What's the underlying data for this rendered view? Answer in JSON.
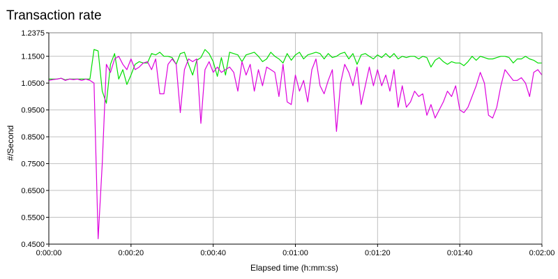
{
  "chart_data": {
    "type": "line",
    "title": "Transaction rate",
    "xlabel": "Elapsed time (h:mm:ss)",
    "ylabel": "#/Second",
    "xlim": [
      0,
      120
    ],
    "ylim": [
      0.45,
      1.2375
    ],
    "grid": true,
    "xticks": [
      0,
      20,
      40,
      60,
      80,
      100,
      120
    ],
    "xtick_labels": [
      "0:00:00",
      "0:00:20",
      "0:00:40",
      "0:01:00",
      "0:01:20",
      "0:01:40",
      "0:02:00"
    ],
    "yticks": [
      0.45,
      0.55,
      0.65,
      0.75,
      0.85,
      0.95,
      1.05,
      1.15,
      1.2375
    ],
    "ytick_labels": [
      "0.4500",
      "0.5500",
      "0.6500",
      "0.7500",
      "0.8500",
      "0.9500",
      "1.0500",
      "1.1500",
      "1.2375"
    ],
    "series": [
      {
        "color": "#00dd00",
        "x": [
          0,
          1,
          2,
          3,
          4,
          5,
          6,
          7,
          8,
          9,
          10,
          11,
          12,
          13,
          14,
          15,
          16,
          17,
          18,
          19,
          20,
          21,
          22,
          23,
          24,
          25,
          26,
          27,
          28,
          29,
          30,
          31,
          32,
          33,
          34,
          35,
          36,
          37,
          38,
          39,
          40,
          41,
          42,
          43,
          44,
          45,
          46,
          47,
          48,
          49,
          50,
          51,
          52,
          53,
          54,
          55,
          56,
          57,
          58,
          59,
          60,
          61,
          62,
          63,
          64,
          65,
          66,
          67,
          68,
          69,
          70,
          71,
          72,
          73,
          74,
          75,
          76,
          77,
          78,
          79,
          80,
          81,
          82,
          83,
          84,
          85,
          86,
          87,
          88,
          89,
          90,
          91,
          92,
          93,
          94,
          95,
          96,
          97,
          98,
          99,
          100,
          101,
          102,
          103,
          104,
          105,
          106,
          107,
          108,
          109,
          110,
          111,
          112,
          113,
          114,
          115,
          116,
          117,
          118,
          119,
          120
        ],
        "y": [
          1.065,
          1.065,
          1.065,
          1.068,
          1.062,
          1.065,
          1.065,
          1.065,
          1.065,
          1.065,
          1.065,
          1.175,
          1.17,
          1.02,
          0.975,
          1.12,
          1.16,
          1.065,
          1.1,
          1.045,
          1.08,
          1.12,
          1.13,
          1.125,
          1.125,
          1.16,
          1.155,
          1.165,
          1.15,
          1.15,
          1.145,
          1.12,
          1.16,
          1.165,
          1.12,
          1.08,
          1.135,
          1.145,
          1.175,
          1.16,
          1.13,
          1.075,
          1.145,
          1.08,
          1.165,
          1.16,
          1.155,
          1.13,
          1.155,
          1.16,
          1.165,
          1.15,
          1.13,
          1.14,
          1.165,
          1.15,
          1.14,
          1.125,
          1.16,
          1.135,
          1.155,
          1.165,
          1.14,
          1.155,
          1.16,
          1.165,
          1.16,
          1.14,
          1.16,
          1.145,
          1.15,
          1.16,
          1.165,
          1.14,
          1.16,
          1.12,
          1.155,
          1.16,
          1.15,
          1.14,
          1.155,
          1.145,
          1.16,
          1.145,
          1.16,
          1.14,
          1.15,
          1.145,
          1.15,
          1.15,
          1.14,
          1.15,
          1.145,
          1.11,
          1.135,
          1.145,
          1.13,
          1.12,
          1.13,
          1.125,
          1.125,
          1.115,
          1.13,
          1.15,
          1.135,
          1.15,
          1.145,
          1.14,
          1.14,
          1.145,
          1.15,
          1.15,
          1.145,
          1.125,
          1.14,
          1.14,
          1.15,
          1.14,
          1.135,
          1.125,
          1.125
        ]
      },
      {
        "color": "#dd00dd",
        "x": [
          0,
          1,
          2,
          3,
          4,
          5,
          6,
          7,
          8,
          9,
          10,
          11,
          12,
          13,
          14,
          15,
          16,
          17,
          18,
          19,
          20,
          21,
          22,
          23,
          24,
          25,
          26,
          27,
          28,
          29,
          30,
          31,
          32,
          33,
          34,
          35,
          36,
          37,
          38,
          39,
          40,
          41,
          42,
          43,
          44,
          45,
          46,
          47,
          48,
          49,
          50,
          51,
          52,
          53,
          54,
          55,
          56,
          57,
          58,
          59,
          60,
          61,
          62,
          63,
          64,
          65,
          66,
          67,
          68,
          69,
          70,
          71,
          72,
          73,
          74,
          75,
          76,
          77,
          78,
          79,
          80,
          81,
          82,
          83,
          84,
          85,
          86,
          87,
          88,
          89,
          90,
          91,
          92,
          93,
          94,
          95,
          96,
          97,
          98,
          99,
          100,
          101,
          102,
          103,
          104,
          105,
          106,
          107,
          108,
          109,
          110,
          111,
          112,
          113,
          114,
          115,
          116,
          117,
          118,
          119,
          120
        ],
        "y": [
          1.06,
          1.063,
          1.065,
          1.068,
          1.06,
          1.065,
          1.063,
          1.065,
          1.06,
          1.065,
          1.06,
          1.05,
          0.47,
          0.75,
          1.12,
          1.09,
          1.14,
          1.15,
          1.12,
          1.1,
          1.14,
          1.1,
          1.11,
          1.125,
          1.13,
          1.1,
          1.14,
          1.01,
          1.01,
          1.12,
          1.14,
          1.12,
          0.94,
          1.1,
          1.14,
          1.13,
          1.14,
          0.9,
          1.1,
          1.13,
          1.09,
          1.11,
          1.09,
          1.1,
          1.11,
          1.09,
          1.02,
          1.13,
          1.08,
          1.12,
          1.02,
          1.1,
          1.04,
          1.11,
          1.1,
          1.09,
          1.0,
          1.12,
          0.98,
          0.97,
          1.08,
          1.02,
          1.06,
          0.98,
          1.1,
          1.14,
          1.04,
          1.01,
          1.06,
          1.1,
          0.87,
          1.05,
          1.12,
          1.09,
          1.04,
          1.11,
          0.97,
          1.04,
          1.11,
          1.04,
          1.1,
          1.04,
          1.08,
          1.02,
          1.1,
          0.96,
          1.04,
          0.96,
          0.98,
          1.02,
          1.0,
          1.01,
          0.93,
          0.97,
          0.92,
          0.95,
          0.98,
          1.02,
          1.0,
          1.04,
          0.95,
          0.94,
          0.96,
          1.0,
          1.04,
          1.09,
          1.05,
          0.93,
          0.92,
          0.96,
          1.04,
          1.1,
          1.08,
          1.06,
          1.06,
          1.07,
          1.05,
          1.0,
          1.09,
          1.1,
          1.08
        ]
      }
    ]
  }
}
